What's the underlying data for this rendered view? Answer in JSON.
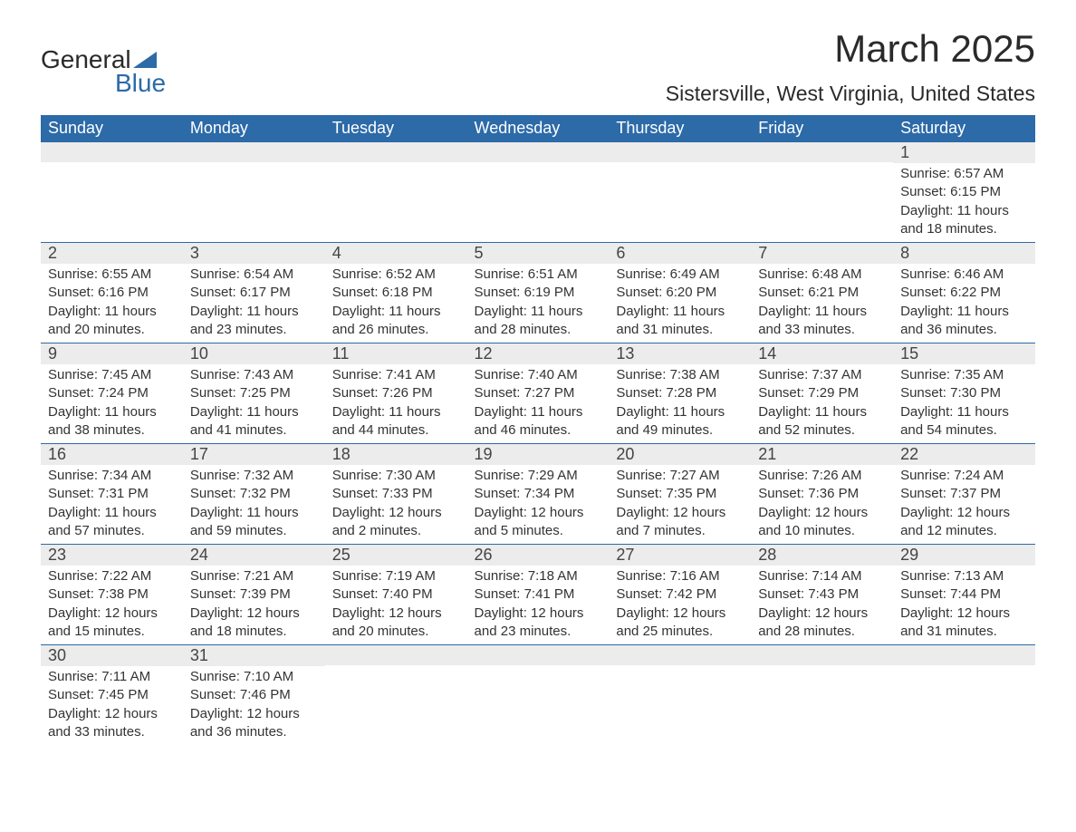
{
  "logo": {
    "word1": "General",
    "word2": "Blue"
  },
  "colors": {
    "brand_blue": "#2c6aa8",
    "header_bg": "#2c6aa8",
    "header_text": "#ffffff",
    "daynum_bg": "#ececec",
    "body_text": "#333333",
    "page_bg": "#ffffff"
  },
  "title": "March 2025",
  "location": "Sistersville, West Virginia, United States",
  "calendar": {
    "day_headers": [
      "Sunday",
      "Monday",
      "Tuesday",
      "Wednesday",
      "Thursday",
      "Friday",
      "Saturday"
    ],
    "header_fontsize": 18,
    "daynum_fontsize": 18,
    "body_fontsize": 15,
    "first_weekday_index": 6,
    "days": [
      {
        "n": 1,
        "sunrise": "6:57 AM",
        "sunset": "6:15 PM",
        "daylight": "11 hours and 18 minutes."
      },
      {
        "n": 2,
        "sunrise": "6:55 AM",
        "sunset": "6:16 PM",
        "daylight": "11 hours and 20 minutes."
      },
      {
        "n": 3,
        "sunrise": "6:54 AM",
        "sunset": "6:17 PM",
        "daylight": "11 hours and 23 minutes."
      },
      {
        "n": 4,
        "sunrise": "6:52 AM",
        "sunset": "6:18 PM",
        "daylight": "11 hours and 26 minutes."
      },
      {
        "n": 5,
        "sunrise": "6:51 AM",
        "sunset": "6:19 PM",
        "daylight": "11 hours and 28 minutes."
      },
      {
        "n": 6,
        "sunrise": "6:49 AM",
        "sunset": "6:20 PM",
        "daylight": "11 hours and 31 minutes."
      },
      {
        "n": 7,
        "sunrise": "6:48 AM",
        "sunset": "6:21 PM",
        "daylight": "11 hours and 33 minutes."
      },
      {
        "n": 8,
        "sunrise": "6:46 AM",
        "sunset": "6:22 PM",
        "daylight": "11 hours and 36 minutes."
      },
      {
        "n": 9,
        "sunrise": "7:45 AM",
        "sunset": "7:24 PM",
        "daylight": "11 hours and 38 minutes."
      },
      {
        "n": 10,
        "sunrise": "7:43 AM",
        "sunset": "7:25 PM",
        "daylight": "11 hours and 41 minutes."
      },
      {
        "n": 11,
        "sunrise": "7:41 AM",
        "sunset": "7:26 PM",
        "daylight": "11 hours and 44 minutes."
      },
      {
        "n": 12,
        "sunrise": "7:40 AM",
        "sunset": "7:27 PM",
        "daylight": "11 hours and 46 minutes."
      },
      {
        "n": 13,
        "sunrise": "7:38 AM",
        "sunset": "7:28 PM",
        "daylight": "11 hours and 49 minutes."
      },
      {
        "n": 14,
        "sunrise": "7:37 AM",
        "sunset": "7:29 PM",
        "daylight": "11 hours and 52 minutes."
      },
      {
        "n": 15,
        "sunrise": "7:35 AM",
        "sunset": "7:30 PM",
        "daylight": "11 hours and 54 minutes."
      },
      {
        "n": 16,
        "sunrise": "7:34 AM",
        "sunset": "7:31 PM",
        "daylight": "11 hours and 57 minutes."
      },
      {
        "n": 17,
        "sunrise": "7:32 AM",
        "sunset": "7:32 PM",
        "daylight": "11 hours and 59 minutes."
      },
      {
        "n": 18,
        "sunrise": "7:30 AM",
        "sunset": "7:33 PM",
        "daylight": "12 hours and 2 minutes."
      },
      {
        "n": 19,
        "sunrise": "7:29 AM",
        "sunset": "7:34 PM",
        "daylight": "12 hours and 5 minutes."
      },
      {
        "n": 20,
        "sunrise": "7:27 AM",
        "sunset": "7:35 PM",
        "daylight": "12 hours and 7 minutes."
      },
      {
        "n": 21,
        "sunrise": "7:26 AM",
        "sunset": "7:36 PM",
        "daylight": "12 hours and 10 minutes."
      },
      {
        "n": 22,
        "sunrise": "7:24 AM",
        "sunset": "7:37 PM",
        "daylight": "12 hours and 12 minutes."
      },
      {
        "n": 23,
        "sunrise": "7:22 AM",
        "sunset": "7:38 PM",
        "daylight": "12 hours and 15 minutes."
      },
      {
        "n": 24,
        "sunrise": "7:21 AM",
        "sunset": "7:39 PM",
        "daylight": "12 hours and 18 minutes."
      },
      {
        "n": 25,
        "sunrise": "7:19 AM",
        "sunset": "7:40 PM",
        "daylight": "12 hours and 20 minutes."
      },
      {
        "n": 26,
        "sunrise": "7:18 AM",
        "sunset": "7:41 PM",
        "daylight": "12 hours and 23 minutes."
      },
      {
        "n": 27,
        "sunrise": "7:16 AM",
        "sunset": "7:42 PM",
        "daylight": "12 hours and 25 minutes."
      },
      {
        "n": 28,
        "sunrise": "7:14 AM",
        "sunset": "7:43 PM",
        "daylight": "12 hours and 28 minutes."
      },
      {
        "n": 29,
        "sunrise": "7:13 AM",
        "sunset": "7:44 PM",
        "daylight": "12 hours and 31 minutes."
      },
      {
        "n": 30,
        "sunrise": "7:11 AM",
        "sunset": "7:45 PM",
        "daylight": "12 hours and 33 minutes."
      },
      {
        "n": 31,
        "sunrise": "7:10 AM",
        "sunset": "7:46 PM",
        "daylight": "12 hours and 36 minutes."
      }
    ],
    "labels": {
      "sunrise": "Sunrise:",
      "sunset": "Sunset:",
      "daylight": "Daylight:"
    }
  }
}
